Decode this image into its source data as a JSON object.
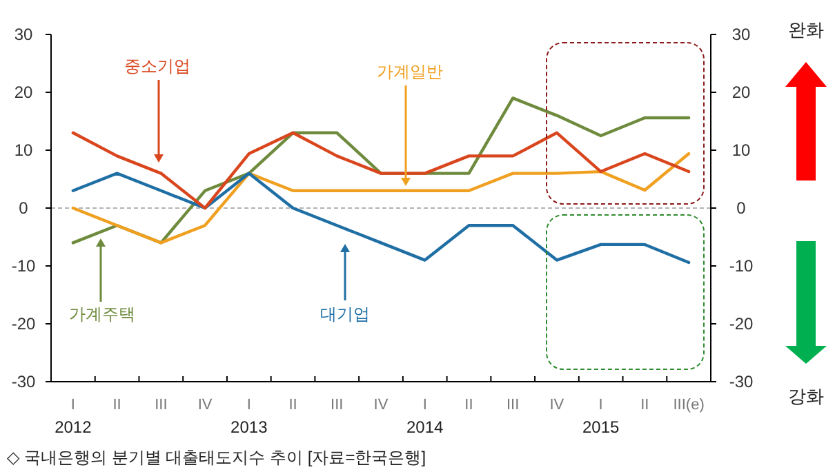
{
  "chart_data": {
    "type": "line",
    "categories": [
      "I",
      "II",
      "III",
      "IV",
      "I",
      "II",
      "III",
      "IV",
      "I",
      "II",
      "III",
      "IV",
      "I",
      "II",
      "III(e)"
    ],
    "series": [
      {
        "name": "중소기업",
        "color": "#d9461e",
        "values": [
          13,
          9,
          6,
          0,
          9.4,
          13,
          9,
          6,
          6,
          9,
          9,
          13,
          6.3,
          9.4,
          6.3
        ]
      },
      {
        "name": "대기업",
        "color": "#1f6fa5",
        "values": [
          3,
          6,
          3,
          0,
          6,
          0,
          -3,
          -6,
          -9,
          -3,
          -3,
          -9,
          -6.3,
          -6.3,
          -9.4
        ]
      },
      {
        "name": "가계일반",
        "color": "#f0a020",
        "values": [
          0,
          -3,
          -6,
          -3,
          6,
          3,
          3,
          3,
          3,
          3,
          6,
          6,
          6.3,
          3.1,
          9.4
        ]
      },
      {
        "name": "가계주택",
        "color": "#6e8b3d",
        "values": [
          -6,
          -3,
          -6,
          3,
          6,
          13,
          13,
          6,
          6,
          6,
          19,
          16,
          12.5,
          15.6,
          15.6
        ]
      }
    ],
    "ylim": [
      -30,
      30
    ],
    "yticks": [
      -30,
      -20,
      -10,
      0,
      10,
      20,
      30
    ],
    "y2lim": [
      -30,
      30
    ],
    "y2ticks": [
      -30,
      -20,
      -10,
      0,
      10,
      20,
      30
    ],
    "ref_lines": [
      {
        "axis": "y",
        "value": 0,
        "color": "#999999",
        "line_style": "dashed"
      }
    ],
    "annotations": [
      "2012",
      "2013",
      "2014",
      "2015",
      "완화",
      "강화",
      "◇ 국내은행의 분기별 대출태도지수 추이 [자료=한국은행]"
    ]
  }
}
